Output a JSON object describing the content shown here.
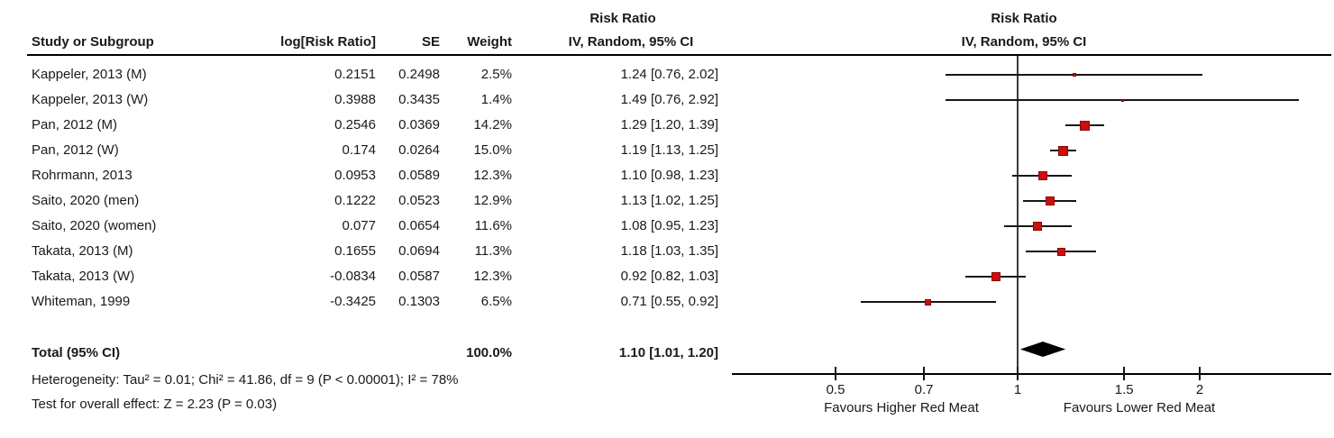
{
  "table": {
    "col_headers": {
      "study": "Study or Subgroup",
      "log_rr": "log[Risk Ratio]",
      "se": "SE",
      "weight": "Weight",
      "effect": "IV, Random, 95% CI",
      "effect_title": "Risk Ratio"
    }
  },
  "plot_header": {
    "title": "Risk Ratio",
    "subtitle": "IV, Random, 95% CI"
  },
  "chart_data": {
    "type": "forest",
    "x_scale": "log10",
    "effect_measure": "Risk Ratio",
    "model": "IV, Random, 95% CI",
    "studies": [
      {
        "name": "Kappeler, 2013 (M)",
        "log_rr": "0.2151",
        "se": "0.2498",
        "weight": "2.5%",
        "weight_pct": 2.5,
        "rr": 1.24,
        "ci_low": 0.76,
        "ci_high": 2.02,
        "ci_text": "1.24 [0.76, 2.02]"
      },
      {
        "name": "Kappeler, 2013 (W)",
        "log_rr": "0.3988",
        "se": "0.3435",
        "weight": "1.4%",
        "weight_pct": 1.4,
        "rr": 1.49,
        "ci_low": 0.76,
        "ci_high": 2.92,
        "ci_text": "1.49 [0.76, 2.92]"
      },
      {
        "name": "Pan, 2012 (M)",
        "log_rr": "0.2546",
        "se": "0.0369",
        "weight": "14.2%",
        "weight_pct": 14.2,
        "rr": 1.29,
        "ci_low": 1.2,
        "ci_high": 1.39,
        "ci_text": "1.29 [1.20, 1.39]"
      },
      {
        "name": "Pan, 2012 (W)",
        "log_rr": "0.174",
        "se": "0.0264",
        "weight": "15.0%",
        "weight_pct": 15.0,
        "rr": 1.19,
        "ci_low": 1.13,
        "ci_high": 1.25,
        "ci_text": "1.19 [1.13, 1.25]"
      },
      {
        "name": "Rohrmann, 2013",
        "log_rr": "0.0953",
        "se": "0.0589",
        "weight": "12.3%",
        "weight_pct": 12.3,
        "rr": 1.1,
        "ci_low": 0.98,
        "ci_high": 1.23,
        "ci_text": "1.10 [0.98, 1.23]"
      },
      {
        "name": "Saito, 2020 (men)",
        "log_rr": "0.1222",
        "se": "0.0523",
        "weight": "12.9%",
        "weight_pct": 12.9,
        "rr": 1.13,
        "ci_low": 1.02,
        "ci_high": 1.25,
        "ci_text": "1.13 [1.02, 1.25]"
      },
      {
        "name": "Saito, 2020 (women)",
        "log_rr": "0.077",
        "se": "0.0654",
        "weight": "11.6%",
        "weight_pct": 11.6,
        "rr": 1.08,
        "ci_low": 0.95,
        "ci_high": 1.23,
        "ci_text": "1.08 [0.95, 1.23]"
      },
      {
        "name": "Takata, 2013 (M)",
        "log_rr": "0.1655",
        "se": "0.0694",
        "weight": "11.3%",
        "weight_pct": 11.3,
        "rr": 1.18,
        "ci_low": 1.03,
        "ci_high": 1.35,
        "ci_text": "1.18 [1.03, 1.35]"
      },
      {
        "name": "Takata, 2013 (W)",
        "log_rr": "-0.0834",
        "se": "0.0587",
        "weight": "12.3%",
        "weight_pct": 12.3,
        "rr": 0.92,
        "ci_low": 0.82,
        "ci_high": 1.03,
        "ci_text": "0.92 [0.82, 1.03]"
      },
      {
        "name": "Whiteman, 1999",
        "log_rr": "-0.3425",
        "se": "0.1303",
        "weight": "6.5%",
        "weight_pct": 6.5,
        "rr": 0.71,
        "ci_low": 0.55,
        "ci_high": 0.92,
        "ci_text": "0.71 [0.55, 0.92]"
      }
    ],
    "total": {
      "label": "Total (95% CI)",
      "weight": "100.0%",
      "rr": 1.1,
      "ci_low": 1.01,
      "ci_high": 1.2,
      "ci_text": "1.10 [1.01, 1.20]"
    },
    "axis": {
      "ticks": [
        "0.5",
        "0.7",
        "1",
        "1.5",
        "2"
      ],
      "range": [
        0.34,
        3.3
      ],
      "ref_value": 1,
      "left_label": "Favours Higher Red Meat",
      "right_label": "Favours Lower Red Meat"
    },
    "footnotes": {
      "heterogeneity": "Heterogeneity: Tau² = 0.01; Chi² = 41.86, df = 9 (P < 0.00001); I² = 78%",
      "overall_effect": "Test for overall effect: Z = 2.23 (P = 0.03)"
    },
    "colors": {
      "square_fill": "#ce0e0e",
      "square_border": "#8a0808",
      "line": "#161616",
      "diamond": "#000000"
    }
  }
}
